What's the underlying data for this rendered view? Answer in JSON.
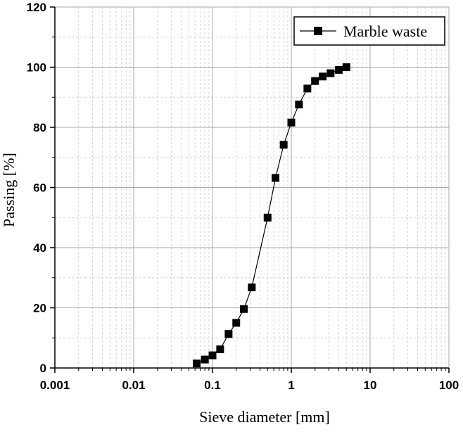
{
  "chart_data": {
    "type": "line",
    "xscale": "log",
    "xlim": [
      0.001,
      100
    ],
    "ylim": [
      0,
      120
    ],
    "xlabel": "Sieve diameter [mm]",
    "ylabel": "Passing [%]",
    "x_ticks": [
      "0.001",
      "0.01",
      "0.1",
      "1",
      "10",
      "100"
    ],
    "y_ticks": [
      "0",
      "20",
      "40",
      "60",
      "80",
      "100",
      "120"
    ],
    "grid": true,
    "legend_position": "top-right",
    "series": [
      {
        "name": "Marble waste",
        "color": "#000000",
        "marker": "square",
        "x": [
          0.063,
          0.08,
          0.1,
          0.125,
          0.16,
          0.2,
          0.25,
          0.315,
          0.5,
          0.63,
          0.8,
          1.0,
          1.25,
          1.6,
          2.0,
          2.5,
          3.15,
          4.0,
          5.0
        ],
        "y": [
          1.5,
          2.8,
          4.2,
          6.2,
          11.3,
          15.0,
          19.6,
          26.8,
          50.0,
          63.2,
          74.2,
          81.6,
          87.6,
          92.9,
          95.4,
          96.9,
          98.0,
          99.1,
          100.0
        ]
      }
    ]
  }
}
